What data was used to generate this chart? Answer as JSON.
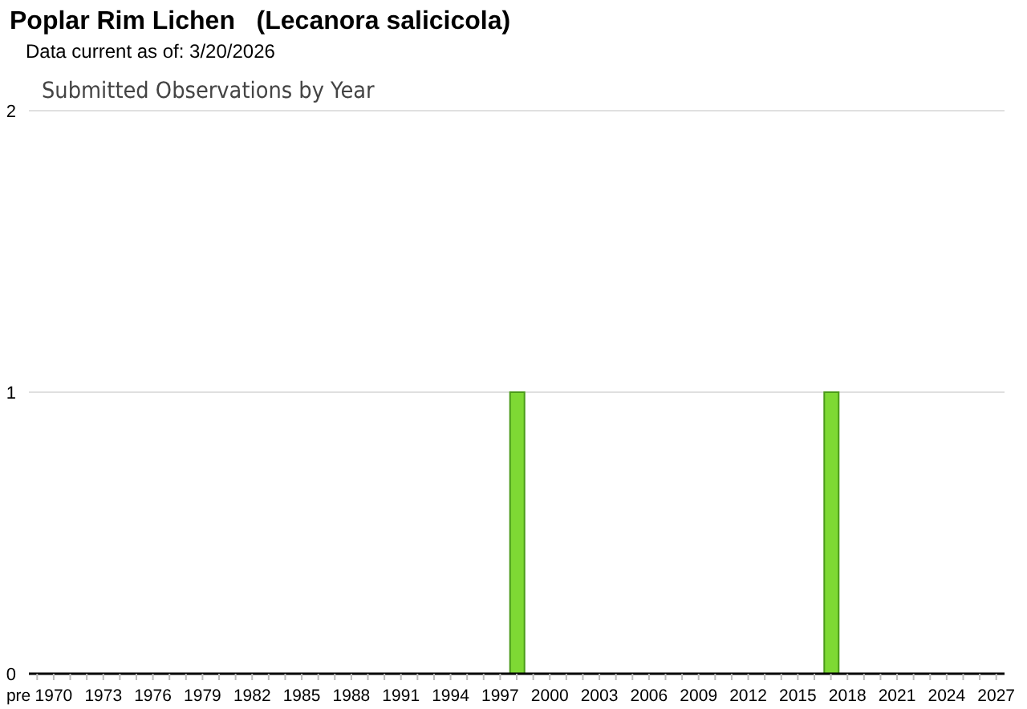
{
  "chart_data": {
    "type": "bar",
    "title": "Poplar Rim Lichen   (Lecanora salicicola)",
    "subtitle": "Data current as of: 3/20/2026",
    "annotations": [
      "Submitted Observations by Year"
    ],
    "categories": [
      "pre",
      "1970",
      null,
      null,
      "1973",
      null,
      null,
      "1976",
      null,
      null,
      "1979",
      null,
      null,
      "1982",
      null,
      null,
      "1985",
      null,
      null,
      "1988",
      null,
      null,
      "1991",
      null,
      null,
      "1994",
      null,
      null,
      "1997",
      null,
      null,
      "2000",
      null,
      null,
      "2003",
      null,
      null,
      "2006",
      null,
      null,
      "2009",
      null,
      null,
      "2012",
      null,
      null,
      "2015",
      null,
      null,
      "2018",
      null,
      null,
      "2021",
      null,
      null,
      "2024",
      null,
      null,
      "2027"
    ],
    "values": [
      0,
      0,
      0,
      0,
      0,
      0,
      0,
      0,
      0,
      0,
      0,
      0,
      0,
      0,
      0,
      0,
      0,
      0,
      0,
      0,
      0,
      0,
      0,
      0,
      0,
      0,
      0,
      0,
      0,
      1,
      0,
      0,
      0,
      0,
      0,
      0,
      0,
      0,
      0,
      0,
      0,
      0,
      0,
      0,
      0,
      0,
      0,
      0,
      1,
      0,
      0,
      0,
      0,
      0,
      0,
      0,
      0,
      0,
      0
    ],
    "color": "#7ed934",
    "ylim": [
      0,
      2
    ],
    "yticks": [
      0,
      1,
      2
    ],
    "grid": "y"
  }
}
